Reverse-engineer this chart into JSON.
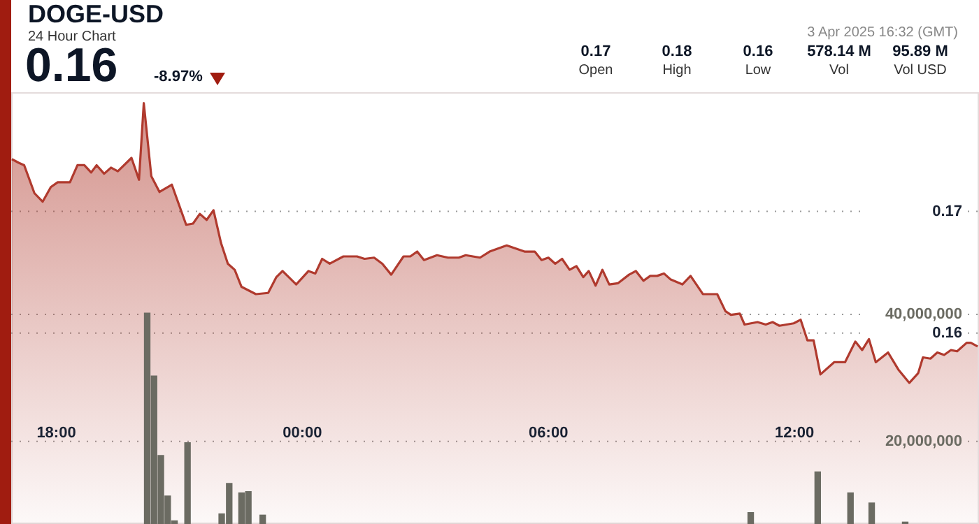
{
  "chart_data": {
    "type": "area",
    "title": "DOGE-USD",
    "subtitle": "24 Hour Chart",
    "annotations": [
      "0.16",
      "-8.97%",
      "3 Apr 2025 16:32 (GMT)",
      "0.17",
      "Open",
      "0.18",
      "High",
      "0.16",
      "Low",
      "578.14 M",
      "Vol",
      "95.89 M",
      "Vol USD"
    ],
    "series": [
      {
        "color": "#b03a2e",
        "x": [
          "2025-04-02T16:55",
          "2025-04-02T17:05",
          "2025-04-02T17:13",
          "2025-04-02T17:28",
          "2025-04-02T17:40",
          "2025-04-02T17:52",
          "2025-04-02T18:02",
          "2025-04-02T18:20",
          "2025-04-02T18:31",
          "2025-04-02T18:41",
          "2025-04-02T18:51",
          "2025-04-02T18:59",
          "2025-04-02T19:10",
          "2025-04-02T19:20",
          "2025-04-02T19:30",
          "2025-04-02T19:50",
          "2025-04-02T20:01",
          "2025-04-02T20:08",
          "2025-04-02T20:19",
          "2025-04-02T20:31",
          "2025-04-02T20:49",
          "2025-04-02T21:10",
          "2025-04-02T21:20",
          "2025-04-02T21:30",
          "2025-04-02T21:40",
          "2025-04-02T21:50",
          "2025-04-02T22:01",
          "2025-04-02T22:11",
          "2025-04-02T22:21",
          "2025-04-02T22:31",
          "2025-04-02T22:52",
          "2025-04-02T23:10",
          "2025-04-02T23:22",
          "2025-04-02T23:31",
          "2025-04-02T23:51",
          "2025-04-03T00:09",
          "2025-04-03T00:19",
          "2025-04-03T00:29",
          "2025-04-03T00:40",
          "2025-04-03T01:00",
          "2025-04-03T01:20",
          "2025-04-03T01:31",
          "2025-04-03T01:45",
          "2025-04-03T01:57",
          "2025-04-03T02:10",
          "2025-04-03T02:28",
          "2025-04-03T02:38",
          "2025-04-03T02:48",
          "2025-04-03T02:58",
          "2025-04-03T03:17",
          "2025-04-03T03:33",
          "2025-04-03T03:49",
          "2025-04-03T03:59",
          "2025-04-03T04:20",
          "2025-04-03T04:34",
          "2025-04-03T04:59",
          "2025-04-03T05:25",
          "2025-04-03T05:40",
          "2025-04-03T05:50",
          "2025-04-03T06:00",
          "2025-04-03T06:10",
          "2025-04-03T06:20",
          "2025-04-03T06:31",
          "2025-04-03T06:41",
          "2025-04-03T06:51",
          "2025-04-03T06:59",
          "2025-04-03T07:09",
          "2025-04-03T07:19",
          "2025-04-03T07:29",
          "2025-04-03T07:42",
          "2025-04-03T07:58",
          "2025-04-03T08:08",
          "2025-04-03T08:19",
          "2025-04-03T08:29",
          "2025-04-03T08:39",
          "2025-04-03T08:49",
          "2025-04-03T08:59",
          "2025-04-03T09:16",
          "2025-04-03T09:28",
          "2025-04-03T09:46",
          "2025-04-03T10:07",
          "2025-04-03T10:19",
          "2025-04-03T10:27",
          "2025-04-03T10:40",
          "2025-04-03T10:47",
          "2025-04-03T11:06",
          "2025-04-03T11:18",
          "2025-04-03T11:28",
          "2025-04-03T11:38",
          "2025-04-03T11:59",
          "2025-04-03T12:09",
          "2025-04-03T12:19",
          "2025-04-03T12:28",
          "2025-04-03T12:38",
          "2025-04-03T12:58",
          "2025-04-03T13:14",
          "2025-04-03T13:29",
          "2025-04-03T13:39",
          "2025-04-03T13:49",
          "2025-04-03T13:59",
          "2025-04-03T14:17",
          "2025-04-03T14:32",
          "2025-04-03T14:48",
          "2025-04-03T15:01",
          "2025-04-03T15:08",
          "2025-04-03T15:19",
          "2025-04-03T15:29",
          "2025-04-03T15:39",
          "2025-04-03T15:49",
          "2025-04-03T15:58",
          "2025-04-03T16:12",
          "2025-04-03T16:18",
          "2025-04-03T16:28"
        ],
        "values": [
          0.1743,
          0.174,
          0.1738,
          0.1715,
          0.1708,
          0.172,
          0.1724,
          0.1724,
          0.1738,
          0.1738,
          0.1732,
          0.1738,
          0.1731,
          0.1736,
          0.1733,
          0.1744,
          0.1726,
          0.1789,
          0.1729,
          0.1716,
          0.1722,
          0.1689,
          0.169,
          0.1698,
          0.1693,
          0.1701,
          0.1674,
          0.1657,
          0.1652,
          0.1638,
          0.1632,
          0.1633,
          0.1646,
          0.1651,
          0.164,
          0.1651,
          0.1649,
          0.1661,
          0.1657,
          0.1663,
          0.1663,
          0.1661,
          0.1662,
          0.1657,
          0.1648,
          0.1663,
          0.1663,
          0.1667,
          0.166,
          0.1664,
          0.1662,
          0.1662,
          0.1664,
          0.1662,
          0.1667,
          0.1672,
          0.1667,
          0.1667,
          0.166,
          0.1662,
          0.1657,
          0.1661,
          0.1652,
          0.1655,
          0.1646,
          0.1651,
          0.1639,
          0.1652,
          0.164,
          0.1641,
          0.1648,
          0.1651,
          0.1643,
          0.1647,
          0.1647,
          0.1649,
          0.1644,
          0.164,
          0.1647,
          0.1632,
          0.1632,
          0.1618,
          0.1615,
          0.1616,
          0.1607,
          0.1609,
          0.1607,
          0.1609,
          0.1606,
          0.1608,
          0.1611,
          0.1594,
          0.1594,
          0.1566,
          0.1576,
          0.1576,
          0.1593,
          0.1586,
          0.1595,
          0.1576,
          0.1584,
          0.157,
          0.1559,
          0.1567,
          0.158,
          0.1579,
          0.1584,
          0.1582,
          0.1586,
          0.1585,
          0.1592,
          0.1592,
          0.1589
        ]
      },
      {
        "type": "bar",
        "axis": "y2",
        "color": "#6b6b62",
        "x": [
          "2025-04-02T20:13",
          "2025-04-02T20:23",
          "2025-04-02T20:33",
          "2025-04-02T20:43",
          "2025-04-02T20:53",
          "2025-04-02T21:12",
          "2025-04-02T22:02",
          "2025-04-02T22:13",
          "2025-04-02T22:31",
          "2025-04-02T22:41",
          "2025-04-02T23:02",
          "2025-04-03T10:56",
          "2025-04-03T12:34",
          "2025-04-03T13:22",
          "2025-04-03T13:53",
          "2025-04-03T14:42"
        ],
        "values": [
          40200000,
          30300000,
          17800000,
          11400000,
          7500000,
          19800000,
          8600000,
          13400000,
          11900000,
          12100000,
          8400000,
          8800000,
          15200000,
          11900000,
          10300000,
          7300000
        ]
      }
    ],
    "xlim": [
      "2025-04-02T16:54",
      "2025-04-03T16:30"
    ],
    "xticks": [
      {
        "value": "2025-04-02T18:00",
        "label": "18:00"
      },
      {
        "value": "2025-04-03T00:00",
        "label": "00:00"
      },
      {
        "value": "2025-04-03T06:00",
        "label": "06:00"
      },
      {
        "value": "2025-04-03T12:00",
        "label": "12:00"
      }
    ],
    "ylim": [
      0.1443,
      0.1798
    ],
    "yticks": [
      0.16,
      0.17
    ],
    "y2lim": [
      7000000,
      75000000
    ],
    "y2ticks": [
      {
        "value": 20000000,
        "label": "20,000,000"
      },
      {
        "value": 40000000,
        "label": "40,000,000"
      }
    ],
    "grid": "y",
    "marker": "none"
  }
}
